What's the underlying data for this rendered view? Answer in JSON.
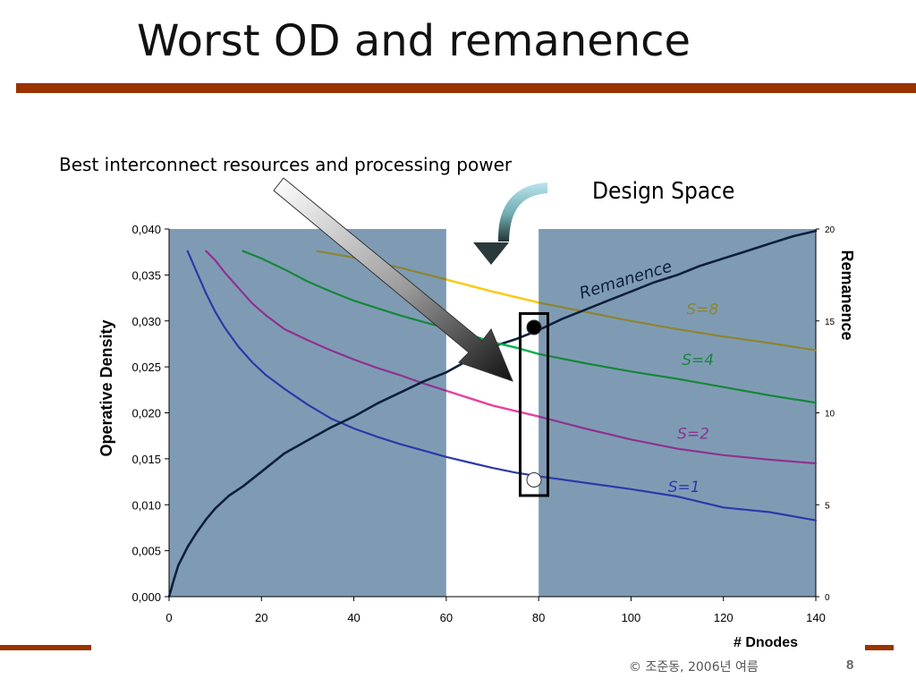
{
  "slide": {
    "title": "Worst OD and remanence",
    "footer": "© 조준동, 2006년 여름",
    "page_number": "8"
  },
  "annotations": {
    "best": "Best interconnect resources and processing power",
    "design_space": "Design Space",
    "remanence_curve": "Remanence"
  },
  "colors": {
    "plot_bg": "#7f9bb4",
    "design_band": "#ffffff",
    "rule": "#993300",
    "remanence": "#0d1f3c",
    "s1": "#2b3aa8",
    "s2": "#8e3290",
    "s4": "#16873a",
    "s8": "#8b8630",
    "highlight_pink": "#ee3f9b",
    "highlight_yellow": "#ffcc00",
    "highlight_green": "#00b050"
  },
  "chart_data": {
    "type": "line",
    "xlabel": "# Dnodes",
    "ylabel": "Operative Density",
    "y2label": "Remanence",
    "xlim": [
      0,
      140
    ],
    "ylim": [
      0,
      0.04
    ],
    "y2lim": [
      0,
      20
    ],
    "x_ticks": [
      "0",
      "20",
      "40",
      "60",
      "80",
      "100",
      "120",
      "140"
    ],
    "y_ticks": [
      "0,000",
      "0,005",
      "0,010",
      "0,015",
      "0,020",
      "0,025",
      "0,030",
      "0,035",
      "0,040"
    ],
    "y2_ticks": [
      "0",
      "5",
      "10",
      "15",
      "20"
    ],
    "grid": false,
    "design_space_band": [
      60,
      80
    ],
    "series": [
      {
        "name": "S=1",
        "axis": "left",
        "color_key": "s1",
        "x": [
          4,
          6,
          8,
          10,
          12,
          15,
          18,
          21,
          25,
          30,
          35,
          40,
          45,
          50,
          55,
          60,
          65,
          70,
          75,
          80,
          90,
          100,
          110,
          120,
          130,
          140
        ],
        "y": [
          0.0376,
          0.0353,
          0.033,
          0.031,
          0.0293,
          0.0272,
          0.0255,
          0.0241,
          0.0226,
          0.0209,
          0.0194,
          0.0183,
          0.0174,
          0.0166,
          0.0159,
          0.0152,
          0.0146,
          0.014,
          0.0135,
          0.0131,
          0.0124,
          0.0117,
          0.0109,
          0.0097,
          0.0092,
          0.0083
        ]
      },
      {
        "name": "S=2",
        "axis": "left",
        "color_key": "s2",
        "x": [
          8,
          10,
          12,
          15,
          18,
          21,
          25,
          30,
          35,
          40,
          45,
          50,
          55,
          60,
          65,
          70,
          75,
          80,
          90,
          100,
          110,
          120,
          130,
          140
        ],
        "y": [
          0.0376,
          0.0366,
          0.0353,
          0.0336,
          0.0319,
          0.0306,
          0.0291,
          0.0279,
          0.0268,
          0.0258,
          0.0249,
          0.0241,
          0.0232,
          0.0224,
          0.0216,
          0.0208,
          0.0202,
          0.0196,
          0.0183,
          0.0171,
          0.0161,
          0.0154,
          0.0149,
          0.0145
        ]
      },
      {
        "name": "S=4",
        "axis": "left",
        "color_key": "s4",
        "x": [
          16,
          20,
          25,
          30,
          35,
          40,
          45,
          50,
          55,
          60,
          65,
          70,
          75,
          80,
          90,
          100,
          110,
          120,
          130,
          140
        ],
        "y": [
          0.0376,
          0.0368,
          0.0356,
          0.0343,
          0.0332,
          0.0322,
          0.0314,
          0.0306,
          0.0299,
          0.0292,
          0.0285,
          0.0277,
          0.0271,
          0.0264,
          0.0254,
          0.0245,
          0.0237,
          0.0228,
          0.0219,
          0.0211
        ]
      },
      {
        "name": "S=8",
        "axis": "left",
        "color_key": "s8",
        "x": [
          32,
          40,
          50,
          60,
          70,
          80,
          90,
          100,
          110,
          120,
          130,
          140
        ],
        "y": [
          0.0376,
          0.0369,
          0.0358,
          0.0345,
          0.0332,
          0.032,
          0.031,
          0.03,
          0.0291,
          0.0283,
          0.0276,
          0.0268
        ]
      },
      {
        "name": "Remanence",
        "axis": "right",
        "color_key": "remanence",
        "x": [
          0,
          1,
          2,
          4,
          6,
          8,
          10,
          13,
          16,
          20,
          25,
          30,
          35,
          40,
          45,
          50,
          55,
          60,
          65,
          70,
          75,
          80,
          85,
          90,
          95,
          100,
          105,
          110,
          115,
          120,
          125,
          130,
          135,
          140
        ],
        "y": [
          0,
          0.9,
          1.7,
          2.7,
          3.5,
          4.2,
          4.8,
          5.5,
          6.0,
          6.8,
          7.8,
          8.5,
          9.2,
          9.8,
          10.5,
          11.1,
          11.7,
          12.2,
          12.9,
          13.6,
          14.0,
          14.5,
          15.1,
          15.6,
          16.1,
          16.6,
          17.1,
          17.5,
          18.0,
          18.4,
          18.8,
          19.2,
          19.6,
          19.9
        ]
      }
    ],
    "labels": [
      {
        "text": "S=8",
        "x": 112,
        "y": 0.0307,
        "color_key": "s8"
      },
      {
        "text": "S=4",
        "x": 111,
        "y": 0.0252,
        "color_key": "s4"
      },
      {
        "text": "S=2",
        "x": 110,
        "y": 0.0172,
        "color_key": "s2"
      },
      {
        "text": "S=1",
        "x": 108,
        "y": 0.0114,
        "color_key": "s1"
      }
    ],
    "markers": [
      {
        "label": "filled",
        "axis": "left",
        "x": 79,
        "y": 0.0293
      },
      {
        "label": "open",
        "axis": "left",
        "x": 79,
        "y": 0.0127
      }
    ],
    "highlight_box_x": [
      76,
      82
    ],
    "highlight_box_y": [
      0.011,
      0.0308
    ]
  }
}
